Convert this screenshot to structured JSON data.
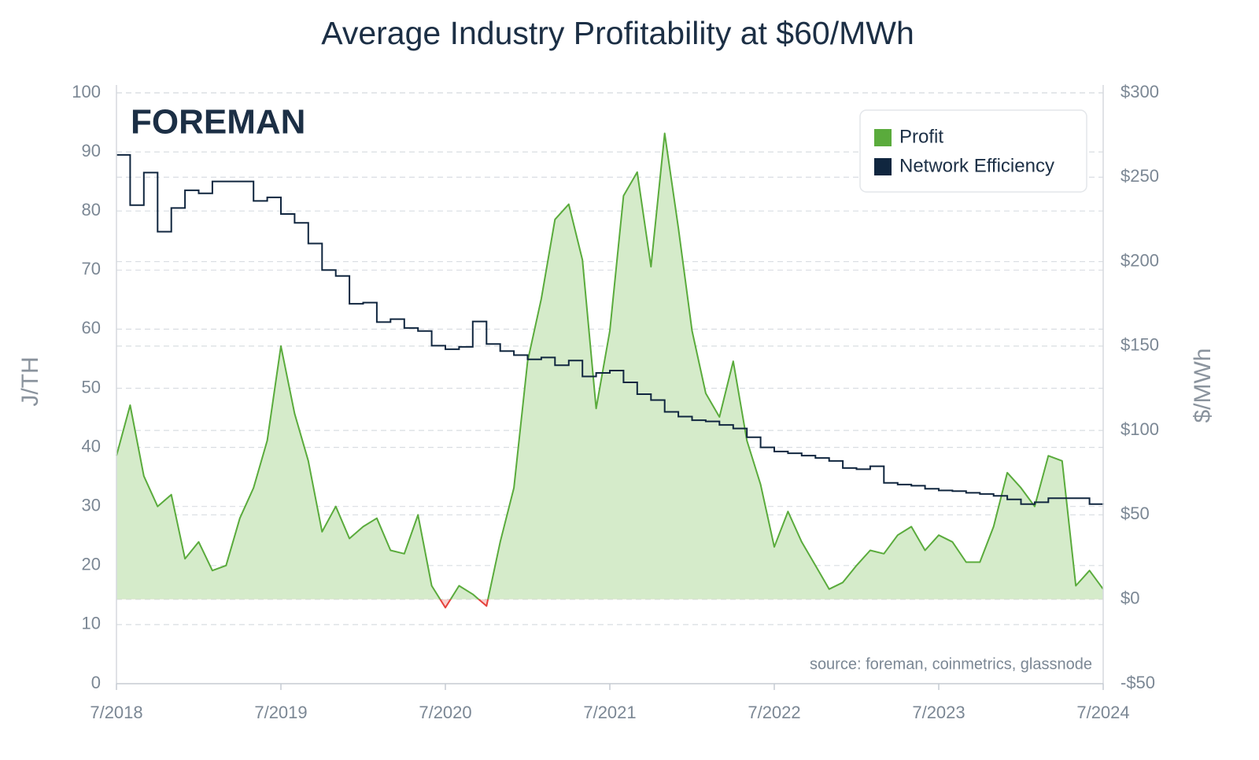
{
  "chart_data": {
    "type": "line",
    "title": "Average Industry Profitability at $60/MWh",
    "brand": "FOREMAN",
    "annotation": "source: foreman, coinmetrics, glassnode",
    "ylabel": "J/TH",
    "y2label": "$/MWh",
    "x": [
      "2018-07",
      "2018-08",
      "2018-09",
      "2018-10",
      "2018-11",
      "2018-12",
      "2019-01",
      "2019-02",
      "2019-03",
      "2019-04",
      "2019-05",
      "2019-06",
      "2019-07",
      "2019-08",
      "2019-09",
      "2019-10",
      "2019-11",
      "2019-12",
      "2020-01",
      "2020-02",
      "2020-03",
      "2020-04",
      "2020-05",
      "2020-06",
      "2020-07",
      "2020-08",
      "2020-09",
      "2020-10",
      "2020-11",
      "2020-12",
      "2021-01",
      "2021-02",
      "2021-03",
      "2021-04",
      "2021-05",
      "2021-06",
      "2021-07",
      "2021-08",
      "2021-09",
      "2021-10",
      "2021-11",
      "2021-12",
      "2022-01",
      "2022-02",
      "2022-03",
      "2022-04",
      "2022-05",
      "2022-06",
      "2022-07",
      "2022-08",
      "2022-09",
      "2022-10",
      "2022-11",
      "2022-12",
      "2023-01",
      "2023-02",
      "2023-03",
      "2023-04",
      "2023-05",
      "2023-06",
      "2023-07",
      "2023-08",
      "2023-09",
      "2023-10",
      "2023-11",
      "2023-12",
      "2024-01",
      "2024-02",
      "2024-03",
      "2024-04",
      "2024-05",
      "2024-06",
      "2024-07"
    ],
    "series": [
      {
        "name": "Profit",
        "color": "#5aab3c",
        "fill": "#d5ebca",
        "negative_color": "#e5403a",
        "axis": "y2",
        "values": [
          85,
          115,
          73,
          55,
          62,
          24,
          34,
          17,
          20,
          48,
          66,
          94,
          150,
          110,
          82,
          40,
          55,
          36,
          43,
          48,
          29,
          27,
          50,
          8,
          -5,
          8,
          3,
          -4,
          34,
          66,
          141,
          178,
          225,
          234,
          201,
          113,
          159,
          239,
          253,
          197,
          276,
          220,
          159,
          122,
          108,
          141,
          94,
          68,
          31,
          52,
          34,
          20,
          6,
          10,
          20,
          29,
          27,
          38,
          43,
          29,
          38,
          34,
          22,
          22,
          43,
          75,
          66,
          55,
          85,
          82,
          8,
          17,
          6
        ]
      },
      {
        "name": "Network Efficiency",
        "color": "#10263f",
        "axis": "y",
        "values": [
          89.5,
          81,
          86.5,
          76.5,
          80.5,
          83.5,
          83,
          85,
          85,
          85,
          81.7,
          82.3,
          79.5,
          78,
          74.5,
          70,
          69,
          64.3,
          64.5,
          61.2,
          61.7,
          60.2,
          59.7,
          57.2,
          56.6,
          57,
          61.3,
          57.5,
          56.3,
          55.6,
          54.9,
          55.2,
          53.9,
          54.7,
          52,
          52.6,
          53,
          51,
          49,
          48,
          46,
          45.2,
          44.6,
          44.4,
          43.8,
          43.2,
          41.7,
          40,
          39.3,
          39,
          38.6,
          38.2,
          37.7,
          36.5,
          36.3,
          36.8,
          34,
          33.7,
          33.5,
          33,
          32.7,
          32.6,
          32.3,
          32.1,
          31.8,
          31.2,
          30.4,
          30.7,
          31.4,
          31.4,
          31.4,
          30.4,
          30.3
        ]
      }
    ],
    "xlim": [
      "2018-07",
      "2024-07"
    ],
    "xticks": [
      {
        "value": "2018-07",
        "label": "7/2018"
      },
      {
        "value": "2019-07",
        "label": "7/2019"
      },
      {
        "value": "2020-07",
        "label": "7/2020"
      },
      {
        "value": "2021-07",
        "label": "7/2021"
      },
      {
        "value": "2022-07",
        "label": "7/2022"
      },
      {
        "value": "2023-07",
        "label": "7/2023"
      },
      {
        "value": "2024-07",
        "label": "7/2024"
      }
    ],
    "ylim": [
      0,
      100
    ],
    "yticks": [
      0,
      10,
      20,
      30,
      40,
      50,
      60,
      70,
      80,
      90,
      100
    ],
    "y2lim": [
      -50,
      300
    ],
    "y2ticks": [
      {
        "value": -50,
        "label": "-$50"
      },
      {
        "value": 0,
        "label": "$0"
      },
      {
        "value": 50,
        "label": "$50"
      },
      {
        "value": 100,
        "label": "$100"
      },
      {
        "value": 150,
        "label": "$150"
      },
      {
        "value": 200,
        "label": "$200"
      },
      {
        "value": 250,
        "label": "$250"
      },
      {
        "value": 300,
        "label": "$300"
      }
    ],
    "grid": true,
    "legend": "upper right"
  }
}
